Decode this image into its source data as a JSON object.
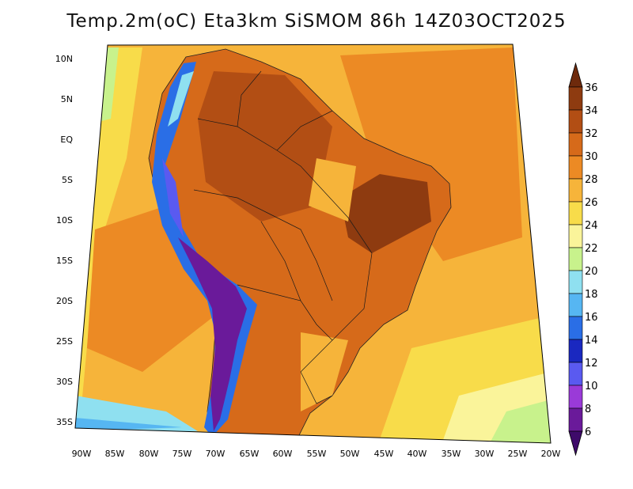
{
  "title": "Temp.2m(oC) Eta3km SiSMOM 86h 14Z03OCT2025",
  "map": {
    "variable": "2-m temperature",
    "units": "oC",
    "lat_labels": [
      "10N",
      "5N",
      "EQ",
      "5S",
      "10S",
      "15S",
      "20S",
      "25S",
      "30S",
      "35S"
    ],
    "lon_labels": [
      "90W",
      "85W",
      "80W",
      "75W",
      "70W",
      "65W",
      "60W",
      "55W",
      "50W",
      "45W",
      "40W",
      "35W",
      "30W",
      "25W",
      "20W"
    ]
  },
  "colorbar": {
    "labels": [
      "36",
      "34",
      "32",
      "30",
      "28",
      "26",
      "24",
      "22",
      "20",
      "18",
      "16",
      "14",
      "12",
      "10",
      "8",
      "6"
    ],
    "colors": [
      "#6e2a0c",
      "#8e3b10",
      "#b24e14",
      "#d66a1a",
      "#ec8a24",
      "#f6b43a",
      "#f8dc4a",
      "#faf49a",
      "#c8f28c",
      "#8fe0f0",
      "#56b6f2",
      "#2a6ee6",
      "#1a28c0",
      "#5a5af0",
      "#9a3ad8",
      "#6a1a9a",
      "#3e0a6a"
    ]
  },
  "colors": {
    "ocean_base": "#f6b43a",
    "ocean_warm": "#ec8a24",
    "land_hot": "#d66a1a",
    "land_very_hot": "#8e3b10",
    "andes_cold": "#1a28c0",
    "andes_coldest": "#6a1a9a",
    "southern_cool": "#56b6f2"
  }
}
